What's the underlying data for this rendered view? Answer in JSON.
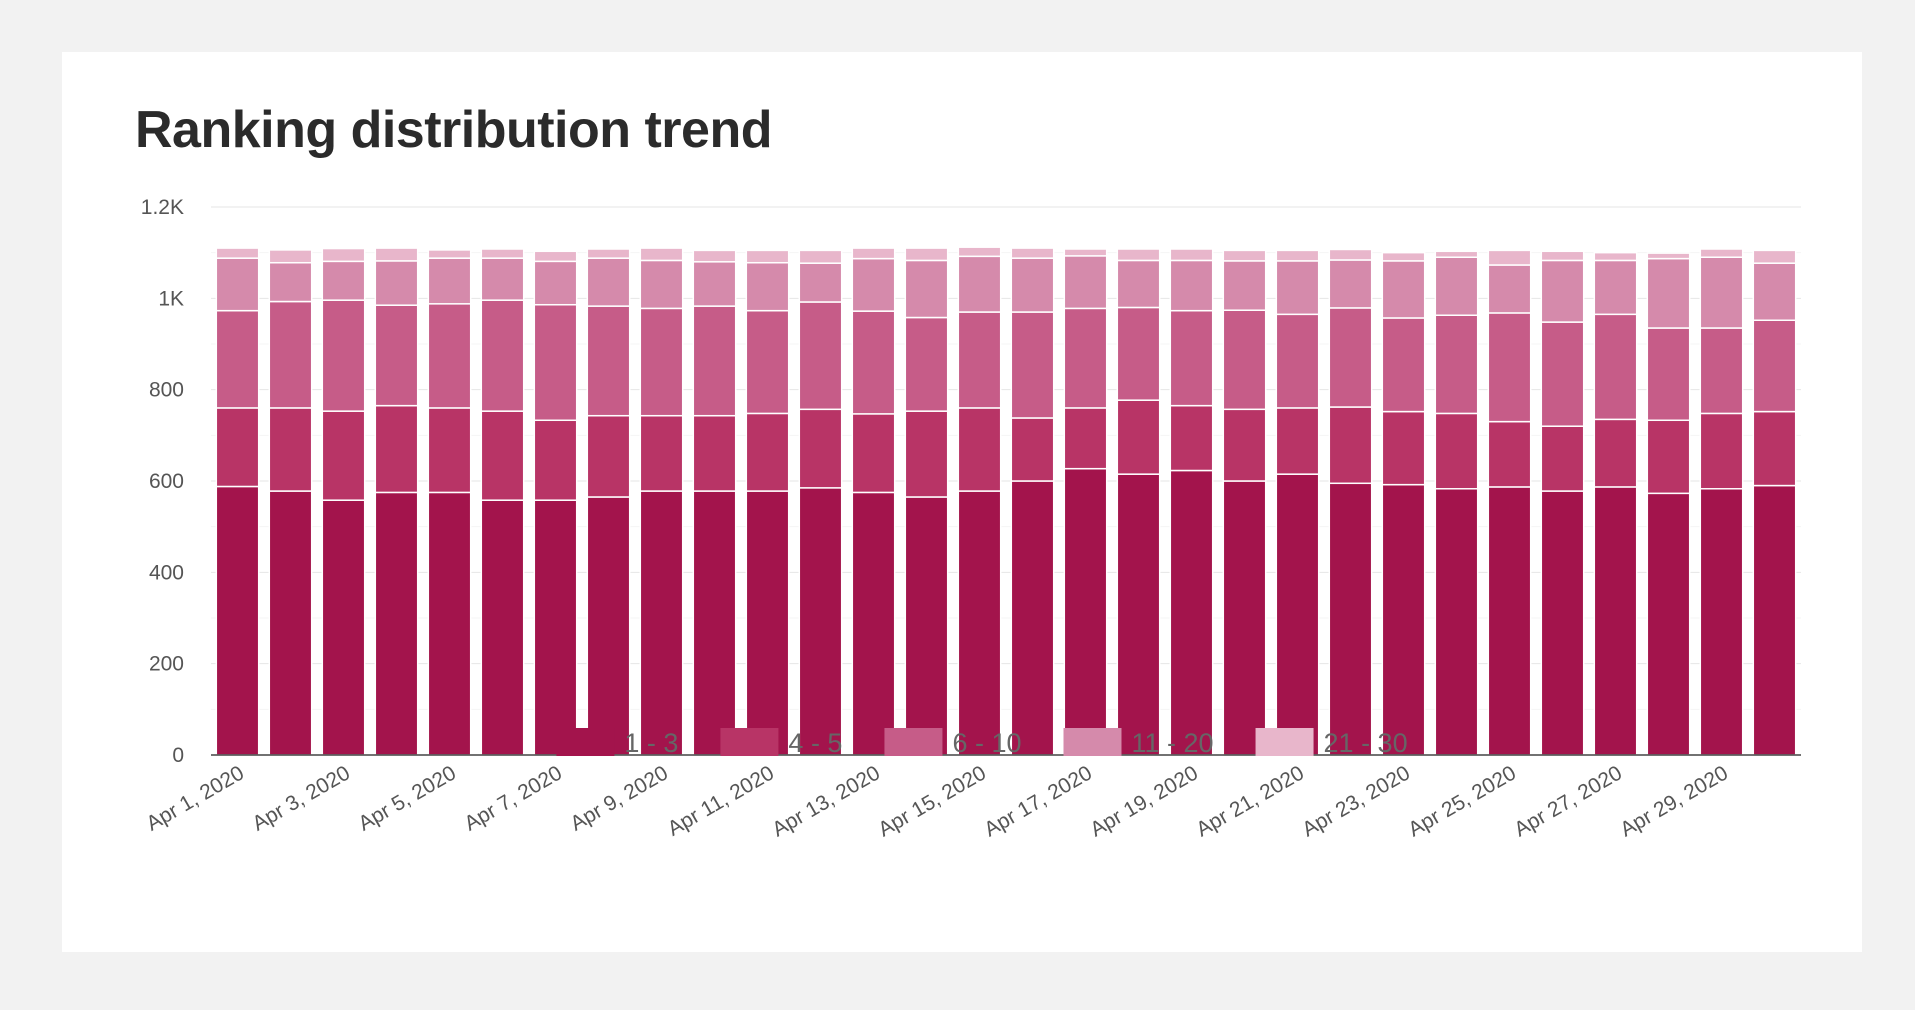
{
  "chart_data": {
    "type": "bar",
    "stacked": true,
    "title": "Ranking distribution trend",
    "xlabel": "",
    "ylabel": "",
    "ylim": [
      0,
      1200
    ],
    "y_ticks": [
      0,
      200,
      400,
      600,
      800,
      1000,
      1200
    ],
    "y_tick_labels": [
      "0",
      "200",
      "400",
      "600",
      "800",
      "1K",
      "1.2K"
    ],
    "grid": true,
    "legend_position": "bottom",
    "categories": [
      "Apr 1, 2020",
      "Apr 2, 2020",
      "Apr 3, 2020",
      "Apr 4, 2020",
      "Apr 5, 2020",
      "Apr 6, 2020",
      "Apr 7, 2020",
      "Apr 8, 2020",
      "Apr 9, 2020",
      "Apr 10, 2020",
      "Apr 11, 2020",
      "Apr 12, 2020",
      "Apr 13, 2020",
      "Apr 14, 2020",
      "Apr 15, 2020",
      "Apr 16, 2020",
      "Apr 17, 2020",
      "Apr 18, 2020",
      "Apr 19, 2020",
      "Apr 20, 2020",
      "Apr 21, 2020",
      "Apr 22, 2020",
      "Apr 23, 2020",
      "Apr 24, 2020",
      "Apr 25, 2020",
      "Apr 26, 2020",
      "Apr 27, 2020",
      "Apr 28, 2020",
      "Apr 29, 2020",
      "Apr 30, 2020"
    ],
    "x_tick_labels": [
      "Apr 1, 2020",
      "Apr 3, 2020",
      "Apr 5, 2020",
      "Apr 7, 2020",
      "Apr 9, 2020",
      "Apr 11, 2020",
      "Apr 13, 2020",
      "Apr 15, 2020",
      "Apr 17, 2020",
      "Apr 19, 2020",
      "Apr 21, 2020",
      "Apr 23, 2020",
      "Apr 25, 2020",
      "Apr 27, 2020",
      "Apr 29, 2020"
    ],
    "series": [
      {
        "name": "1 - 3",
        "color": "#a3144c",
        "values": [
          588,
          578,
          558,
          575,
          575,
          558,
          558,
          565,
          578,
          578,
          578,
          585,
          575,
          565,
          578,
          600,
          627,
          615,
          623,
          600,
          615,
          595,
          592,
          583,
          587,
          578,
          587,
          573,
          583,
          590
        ]
      },
      {
        "name": "4 - 5",
        "color": "#b83466",
        "values": [
          172,
          182,
          195,
          190,
          185,
          195,
          175,
          178,
          165,
          165,
          170,
          172,
          172,
          188,
          182,
          138,
          133,
          162,
          142,
          157,
          145,
          167,
          160,
          165,
          143,
          142,
          148,
          160,
          165,
          162
        ]
      },
      {
        "name": "6 - 10",
        "color": "#c65c88",
        "values": [
          213,
          233,
          243,
          220,
          228,
          243,
          253,
          240,
          235,
          240,
          225,
          235,
          225,
          205,
          210,
          232,
          218,
          203,
          208,
          217,
          205,
          217,
          205,
          215,
          238,
          228,
          230,
          202,
          187,
          200
        ]
      },
      {
        "name": "11 - 20",
        "color": "#d58aab",
        "values": [
          115,
          85,
          85,
          97,
          100,
          92,
          95,
          105,
          105,
          97,
          105,
          85,
          115,
          125,
          122,
          118,
          115,
          103,
          110,
          108,
          117,
          105,
          125,
          127,
          105,
          135,
          118,
          152,
          155,
          125
        ]
      },
      {
        "name": "21 - 30",
        "color": "#e8b6cb",
        "values": [
          22,
          28,
          28,
          28,
          18,
          20,
          22,
          20,
          27,
          25,
          27,
          28,
          23,
          27,
          20,
          22,
          15,
          25,
          25,
          23,
          23,
          23,
          18,
          13,
          32,
          20,
          17,
          12,
          18,
          28
        ]
      }
    ]
  }
}
